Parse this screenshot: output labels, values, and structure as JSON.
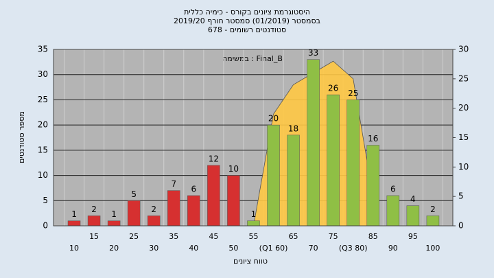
{
  "chart_data": {
    "type": "bar",
    "title": "היסטוגרמת ציונים בקורס - כימיה כללית",
    "subtitle": "בסמסטר  (01/2019)  סמסטר חורף 2019/20",
    "subtitle2": "סטודנטים רשומים - 678",
    "annotation": "במשימה : Final_B",
    "xlabel": "טווח ציונים",
    "ylabel": "מספר סטודנטים",
    "categories": [
      "10",
      "15",
      "20",
      "25",
      "30",
      "35",
      "40",
      "45",
      "50",
      "55",
      "(Q1 60)",
      "65",
      "70",
      "75",
      "(Q3 80)",
      "85",
      "90",
      "95",
      "100"
    ],
    "values": [
      1,
      2,
      1,
      5,
      2,
      7,
      6,
      12,
      10,
      1,
      20,
      18,
      33,
      26,
      25,
      16,
      6,
      4,
      2
    ],
    "bar_colors": [
      "#d63030",
      "#d63030",
      "#d63030",
      "#d63030",
      "#d63030",
      "#d63030",
      "#d63030",
      "#d63030",
      "#d63030",
      "#8fbf45",
      "#8fbf45",
      "#8fbf45",
      "#8fbf45",
      "#8fbf45",
      "#8fbf45",
      "#8fbf45",
      "#8fbf45",
      "#8fbf45",
      "#8fbf45"
    ],
    "area": {
      "axis": "y2",
      "color": "#ffc844",
      "values": [
        null,
        null,
        null,
        null,
        null,
        null,
        null,
        null,
        null,
        0,
        19,
        24,
        26,
        28,
        25,
        5,
        null,
        null,
        null
      ]
    },
    "ylim": [
      0,
      35
    ],
    "yticks": [
      0,
      5,
      10,
      15,
      20,
      25,
      30,
      35
    ],
    "y2lim": [
      0,
      30
    ],
    "y2ticks": [
      0,
      5,
      10,
      15,
      20,
      25,
      30
    ],
    "grid": true
  }
}
